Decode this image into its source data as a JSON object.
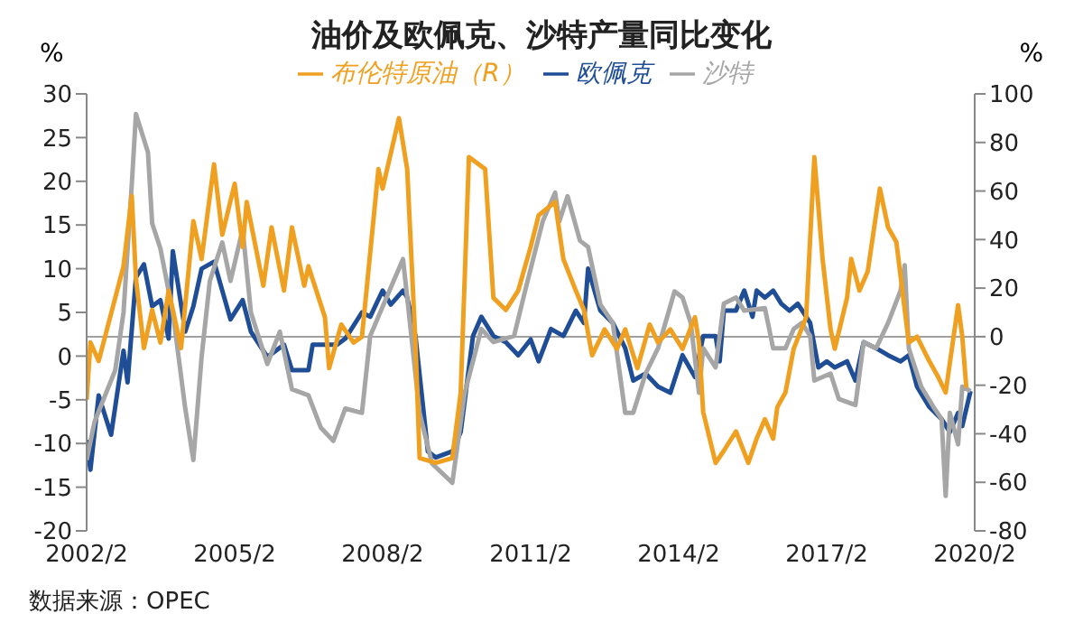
{
  "chart_data": {
    "type": "line",
    "title": "油价及欧佩克、沙特产量同比变化",
    "ylabel": "%",
    "y2label": "%",
    "xlim": [
      "2002-02",
      "2020-02"
    ],
    "xticks": [
      {
        "value": "2002-02",
        "label": "2002/2"
      },
      {
        "value": "2005-02",
        "label": "2005/2"
      },
      {
        "value": "2008-02",
        "label": "2008/2"
      },
      {
        "value": "2011-02",
        "label": "2011/2"
      },
      {
        "value": "2014-02",
        "label": "2014/2"
      },
      {
        "value": "2017-02",
        "label": "2017/2"
      },
      {
        "value": "2020-02",
        "label": "2020/2"
      }
    ],
    "ylim": [
      -20,
      30
    ],
    "yticks": [
      -20,
      -15,
      -10,
      -5,
      0,
      5,
      10,
      15,
      20,
      25,
      30
    ],
    "y2lim": [
      -80,
      100
    ],
    "y2ticks": [
      -80,
      -60,
      -40,
      -20,
      0,
      20,
      40,
      60,
      80,
      100
    ],
    "ref_lines": [
      {
        "axis": "y2",
        "value": 0,
        "color": "#a0a0a0"
      }
    ],
    "legend": "top",
    "marker": "none",
    "line_style": "solid",
    "annotations": [
      "数据来源：OPEC"
    ],
    "series": [
      {
        "name": "欧佩克",
        "color": "#1f4e96",
        "x": [
          "2002-02",
          "2002-03",
          "2002-05",
          "2002-08",
          "2002-11",
          "2002-12",
          "2003-02",
          "2003-04",
          "2003-06",
          "2003-08",
          "2003-10",
          "2003-11",
          "2004-02",
          "2004-04",
          "2004-06",
          "2004-09",
          "2005-01",
          "2005-04",
          "2005-06",
          "2005-10",
          "2006-02",
          "2006-04",
          "2006-08",
          "2006-09",
          "2007-03",
          "2007-05",
          "2007-09",
          "2007-11",
          "2008-02",
          "2008-04",
          "2008-07",
          "2008-08",
          "2008-10",
          "2009-01",
          "2009-03",
          "2009-07",
          "2009-09",
          "2009-12",
          "2010-02",
          "2010-05",
          "2010-08",
          "2010-11",
          "2011-02",
          "2011-04",
          "2011-07",
          "2011-10",
          "2012-01",
          "2012-03",
          "2012-04",
          "2012-07",
          "2012-10",
          "2013-01",
          "2013-03",
          "2013-06",
          "2013-09",
          "2013-12",
          "2014-03",
          "2014-06",
          "2014-08",
          "2014-11",
          "2014-12",
          "2015-01",
          "2015-04",
          "2015-06",
          "2015-08",
          "2015-09",
          "2015-11",
          "2016-01",
          "2016-03",
          "2016-05",
          "2016-07",
          "2016-10",
          "2016-12",
          "2017-02",
          "2017-04",
          "2017-07",
          "2017-09",
          "2017-11",
          "2018-02",
          "2018-05",
          "2018-08",
          "2018-10",
          "2018-12",
          "2019-03",
          "2019-06",
          "2019-08",
          "2019-10",
          "2019-11",
          "2020-01"
        ],
        "values": [
          -9.6,
          -13,
          -4.5,
          -9,
          0.6,
          -3,
          9,
          10.5,
          5.7,
          6.4,
          2,
          12,
          2.8,
          5.7,
          10,
          10.8,
          4.2,
          6.4,
          2.8,
          -0.1,
          1.3,
          -1.6,
          -1.6,
          1.3,
          1.3,
          2,
          5,
          4.5,
          7.5,
          5.9,
          7.5,
          6.7,
          2.3,
          -10.9,
          -11.6,
          -10.9,
          -8.7,
          2.3,
          4.5,
          2.3,
          1.6,
          0.1,
          1.9,
          -0.6,
          3.1,
          2.3,
          5.2,
          3.8,
          10,
          5.2,
          3.8,
          0.9,
          -2.8,
          -2,
          -3.5,
          -4.2,
          0.1,
          -2.4,
          2.3,
          2.3,
          -0.6,
          5.2,
          5.2,
          7.5,
          4.5,
          7.5,
          6.7,
          7.5,
          6,
          5.2,
          6,
          3.8,
          -1.3,
          -0.6,
          -1.3,
          -0.6,
          -2.8,
          1.6,
          0.9,
          0.1,
          -0.6,
          0.1,
          -3.5,
          -5.8,
          -7.2,
          -8.7,
          -6.5,
          -8,
          -4
        ]
      },
      {
        "name": "沙特",
        "color": "#a6a6a6",
        "x": [
          "2002-02",
          "2002-04",
          "2002-09",
          "2002-11",
          "2003-01",
          "2003-02",
          "2003-05",
          "2003-06",
          "2003-08",
          "2003-11",
          "2004-02",
          "2004-04",
          "2004-06",
          "2004-08",
          "2004-11",
          "2005-01",
          "2005-04",
          "2005-06",
          "2005-08",
          "2005-10",
          "2006-01",
          "2006-04",
          "2006-08",
          "2006-11",
          "2007-02",
          "2007-05",
          "2007-09",
          "2007-11",
          "2008-03",
          "2008-07",
          "2008-08",
          "2008-11",
          "2009-02",
          "2009-07",
          "2009-10",
          "2010-02",
          "2010-05",
          "2010-10",
          "2011-01",
          "2011-05",
          "2011-08",
          "2011-09",
          "2011-11",
          "2012-02",
          "2012-04",
          "2012-07",
          "2012-10",
          "2013-01",
          "2013-03",
          "2013-06",
          "2013-09",
          "2014-01",
          "2014-03",
          "2014-05",
          "2014-07",
          "2014-08",
          "2014-11",
          "2015-01",
          "2015-04",
          "2015-06",
          "2015-11",
          "2016-01",
          "2016-04",
          "2016-06",
          "2016-08",
          "2016-10",
          "2016-11",
          "2017-03",
          "2017-05",
          "2017-09",
          "2017-11",
          "2018-02",
          "2018-05",
          "2018-08",
          "2018-09",
          "2018-10",
          "2019-01",
          "2019-04",
          "2019-06",
          "2019-07",
          "2019-08",
          "2019-10",
          "2019-11",
          "2020-01"
        ],
        "values": [
          -11.9,
          -7.5,
          -1.6,
          5,
          19.6,
          27.7,
          23.3,
          15.2,
          12.3,
          5,
          -6,
          -11.9,
          -0.1,
          8.6,
          13,
          8.6,
          14.5,
          5,
          2,
          -0.9,
          2.8,
          -3.8,
          -4.5,
          -8.2,
          -9.7,
          -6,
          -6.5,
          2.3,
          6.7,
          11.1,
          6.7,
          -6.5,
          -12.3,
          -14.5,
          -4.2,
          3.1,
          1.6,
          2.3,
          8.1,
          15.4,
          18.7,
          15.4,
          18.3,
          13.2,
          12.5,
          5.9,
          3.8,
          -6.5,
          -6.5,
          -2,
          0.9,
          7.4,
          6.7,
          3.8,
          -4.2,
          0.9,
          -1.3,
          6,
          6.7,
          5.2,
          5.5,
          0.9,
          0.9,
          3.1,
          3.8,
          2.3,
          -2.8,
          -2,
          -4.9,
          -5.6,
          1.6,
          0.9,
          3.8,
          7.5,
          10.4,
          0.9,
          -3.5,
          -5.8,
          -7.2,
          -16,
          -6.5,
          -10.1,
          -3.5,
          -4
        ]
      },
      {
        "name": "布伦特原油（R）",
        "color": "#f0a020",
        "axis": "y2",
        "x": [
          "2002-02",
          "2002-03",
          "2002-05",
          "2002-07",
          "2002-11",
          "2003-01",
          "2003-02",
          "2003-04",
          "2003-06",
          "2003-08",
          "2003-10",
          "2004-01",
          "2004-04",
          "2004-06",
          "2004-09",
          "2004-11",
          "2005-02",
          "2005-04",
          "2005-05",
          "2005-09",
          "2005-11",
          "2006-02",
          "2006-04",
          "2006-07",
          "2006-08",
          "2006-12",
          "2007-01",
          "2007-04",
          "2007-07",
          "2007-09",
          "2008-01",
          "2008-02",
          "2008-06",
          "2008-08",
          "2008-10",
          "2008-11",
          "2009-03",
          "2009-07",
          "2009-09",
          "2009-11",
          "2010-03",
          "2010-05",
          "2010-08",
          "2010-11",
          "2011-02",
          "2011-04",
          "2011-08",
          "2011-10",
          "2012-01",
          "2012-03",
          "2012-05",
          "2012-08",
          "2012-11",
          "2013-01",
          "2013-04",
          "2013-07",
          "2013-09",
          "2013-12",
          "2014-03",
          "2014-06",
          "2014-07",
          "2014-08",
          "2014-11",
          "2015-01",
          "2015-04",
          "2015-07",
          "2015-09",
          "2015-11",
          "2016-01",
          "2016-02",
          "2016-04",
          "2016-06",
          "2016-09",
          "2016-11",
          "2017-01",
          "2017-03",
          "2017-04",
          "2017-07",
          "2017-08",
          "2017-10",
          "2017-12",
          "2018-03",
          "2018-05",
          "2018-07",
          "2018-10",
          "2018-12",
          "2019-03",
          "2019-05",
          "2019-07",
          "2019-10",
          "2019-11",
          "2019-12"
        ],
        "values": [
          -26,
          -2.4,
          -10,
          2.9,
          29,
          58,
          24,
          -4.7,
          11,
          -2.4,
          19,
          -4.7,
          47.6,
          32,
          71,
          42,
          63,
          37,
          55.5,
          21,
          45,
          19,
          45,
          21,
          29,
          8,
          -13,
          5,
          -2.4,
          0,
          69,
          61,
          90,
          69,
          -2.4,
          -50,
          -52,
          -50,
          -23,
          74,
          69,
          16,
          11,
          19,
          37,
          50,
          55.5,
          32,
          19,
          11,
          -7.7,
          3,
          -5,
          3,
          -13,
          5,
          -2.4,
          3,
          -5,
          8,
          -2.4,
          -31,
          -52,
          -47,
          -39,
          -52,
          -42,
          -34,
          -42,
          -29,
          -23,
          -5,
          8,
          74,
          32,
          3,
          -5,
          16,
          32,
          19,
          26.8,
          61,
          45,
          39,
          -2.4,
          0,
          -10,
          -16,
          -23,
          13,
          0,
          -21
        ]
      }
    ]
  }
}
